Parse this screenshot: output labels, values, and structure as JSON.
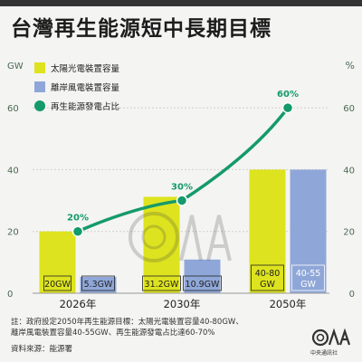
{
  "header": {
    "title": "台灣再生能源短中長期目標"
  },
  "chart_data": {
    "type": "bar",
    "categories": [
      "2026年",
      "2030年",
      "2050年"
    ],
    "series": [
      {
        "name": "太陽光電裝置容量",
        "type": "bar",
        "axis": "left",
        "color": "#dde31e",
        "values": [
          20,
          31.2,
          40
        ],
        "labels": [
          "20GW",
          "31.2GW",
          "40-80\nGW"
        ]
      },
      {
        "name": "離岸風電裝置容量",
        "type": "bar",
        "axis": "left",
        "color": "#8fa7d8",
        "values": [
          5.3,
          10.9,
          40
        ],
        "labels": [
          "5.3GW",
          "10.9GW",
          "40-55\nGW"
        ]
      },
      {
        "name": "再生能源發電占比",
        "type": "line",
        "axis": "right",
        "color": "#149a6b",
        "values": [
          20,
          30,
          60
        ],
        "labels": [
          "20%",
          "30%",
          "60%"
        ]
      }
    ],
    "y_left": {
      "unit": "GW",
      "ticks": [
        0,
        20,
        40,
        60
      ],
      "lim": [
        0,
        70
      ]
    },
    "y_right": {
      "unit": "%",
      "ticks": [
        0,
        20,
        40,
        60
      ],
      "lim": [
        0,
        70
      ]
    },
    "legend_position": "top-left",
    "grid": true
  },
  "footer": {
    "note_lines": [
      "註：政府設定2050年再生能源目標：太陽光電裝置容量40-80GW、",
      "離岸風電裝置容量40-55GW、再生能源發電占比達60-70%"
    ],
    "source": "資料來源：能源署",
    "logo_text": "中央通訊社",
    "colors": {
      "axis_text": "#4a6a4f",
      "grid": "#cfcfcf",
      "label_dark": "#222222",
      "label_light": "#ffffff"
    }
  }
}
